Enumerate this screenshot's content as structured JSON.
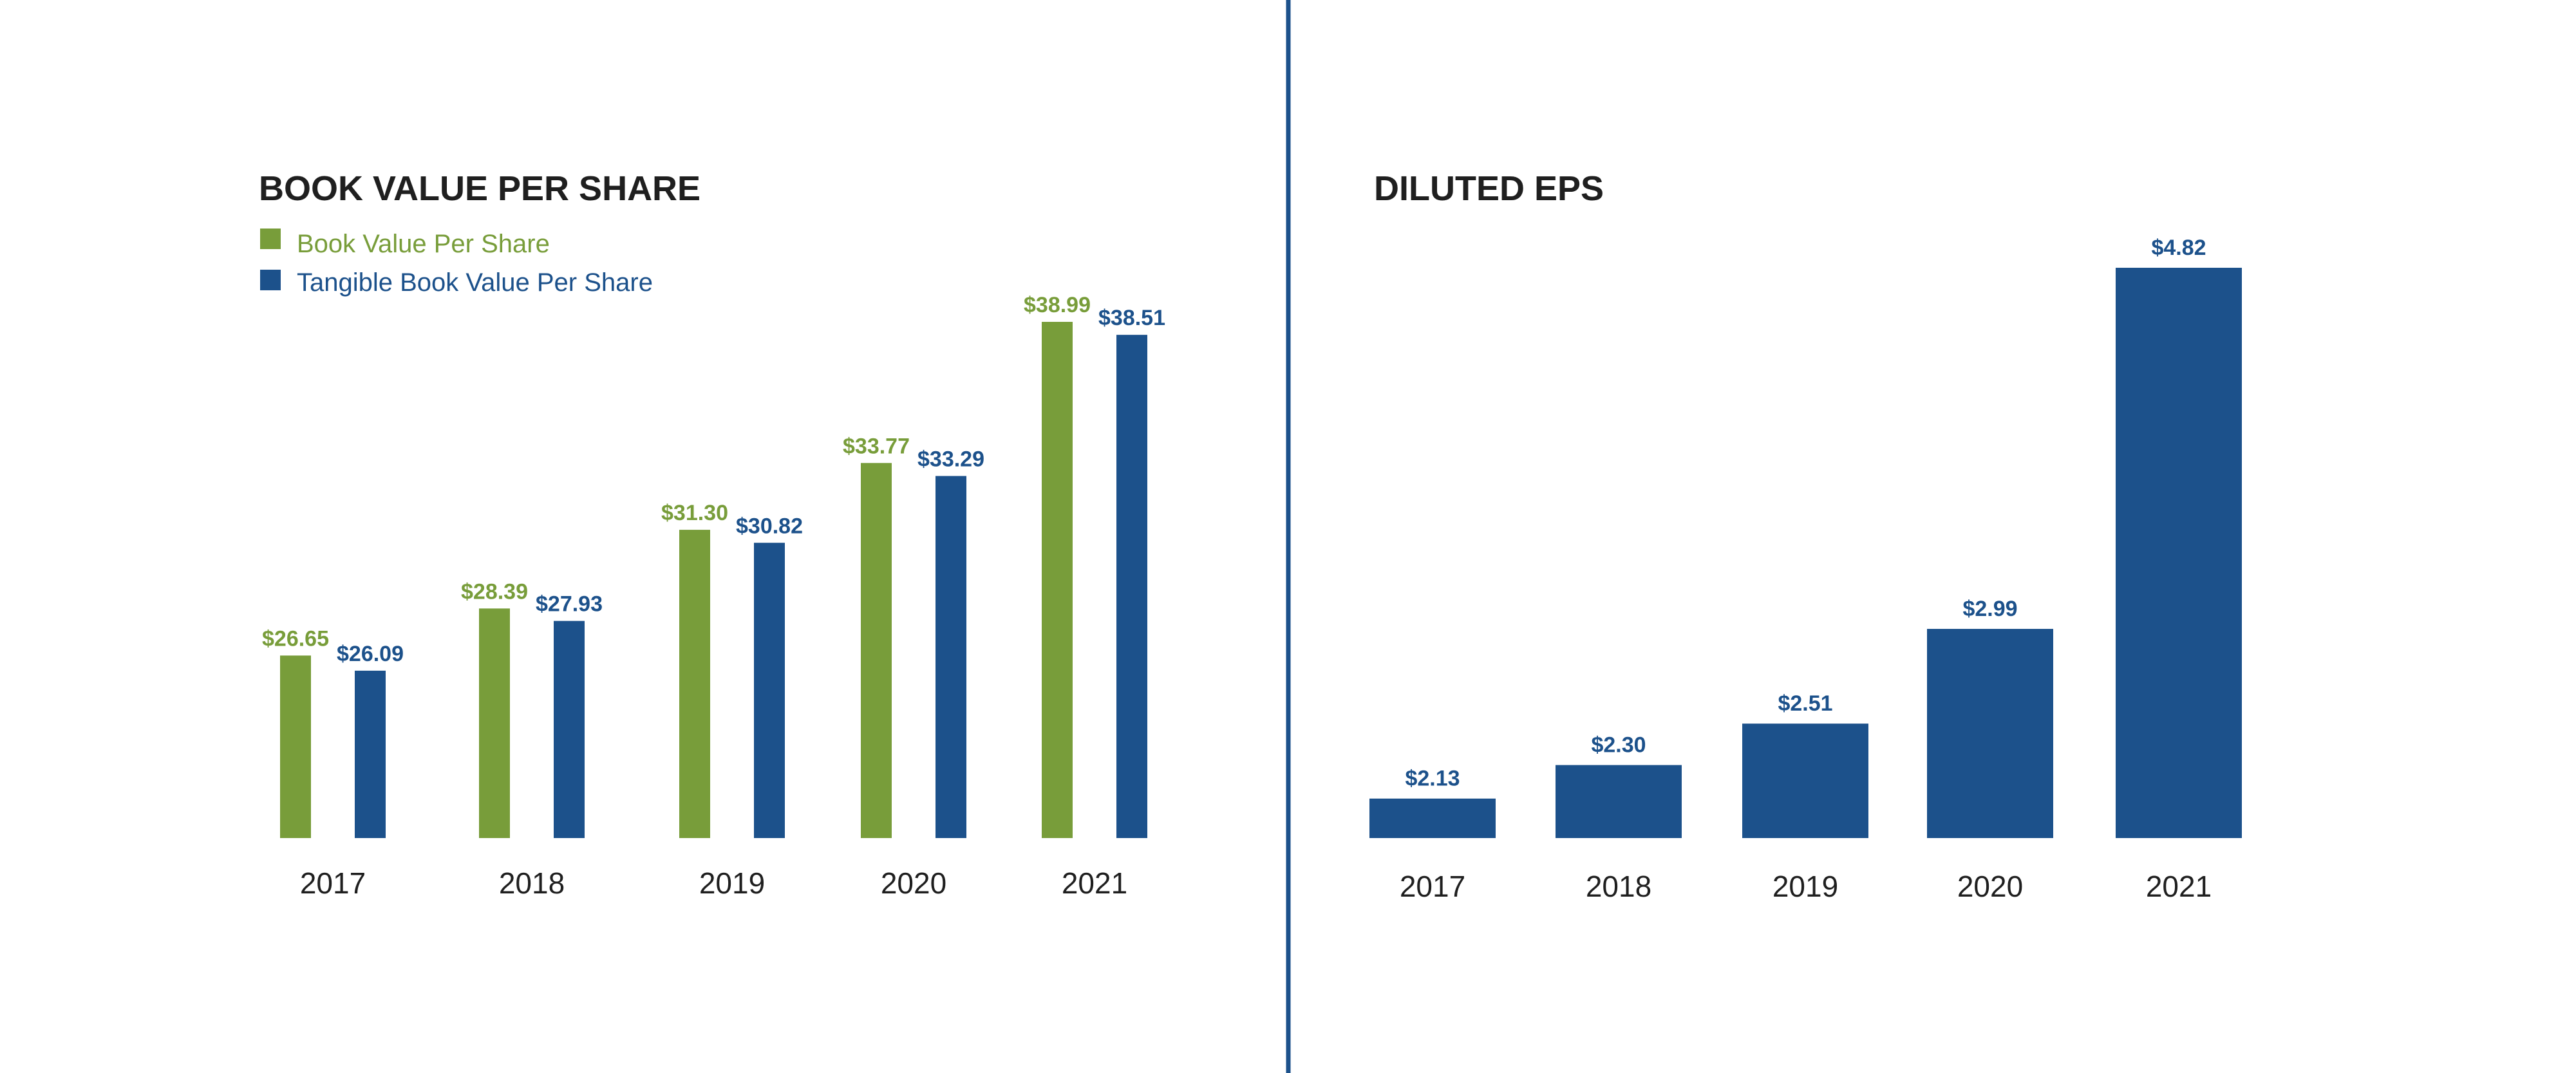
{
  "colors": {
    "green": "#789d3a",
    "blue": "#1c518b",
    "divider": "#1c518b",
    "text": "#1f1f1f"
  },
  "chart_data": [
    {
      "type": "bar",
      "title": "BOOK VALUE PER SHARE",
      "legend_position": "top-left",
      "categories": [
        "2017",
        "2018",
        "2019",
        "2020",
        "2021"
      ],
      "series": [
        {
          "name": "Book Value Per Share",
          "color": "#789d3a",
          "values": [
            26.65,
            28.39,
            31.3,
            33.77,
            38.99
          ],
          "labels": [
            "$26.65",
            "$28.39",
            "$31.30",
            "$33.77",
            "$38.99"
          ]
        },
        {
          "name": "Tangible Book Value Per Share",
          "color": "#1c518b",
          "values": [
            26.09,
            27.93,
            30.82,
            33.29,
            38.51
          ],
          "labels": [
            "$26.09",
            "$27.93",
            "$30.82",
            "$33.29",
            "$38.51"
          ]
        }
      ],
      "ylim": [
        19.9,
        39.8
      ],
      "grid": false
    },
    {
      "type": "bar",
      "title": "DILUTED EPS",
      "categories": [
        "2017",
        "2018",
        "2019",
        "2020",
        "2021"
      ],
      "series": [
        {
          "color": "#1c518b",
          "values": [
            2.13,
            2.3,
            2.51,
            2.99,
            4.82
          ],
          "labels": [
            "$2.13",
            "$2.30",
            "$2.51",
            "$2.99",
            "$4.82"
          ]
        }
      ],
      "ylim": [
        1.93,
        4.82
      ],
      "grid": false
    }
  ]
}
